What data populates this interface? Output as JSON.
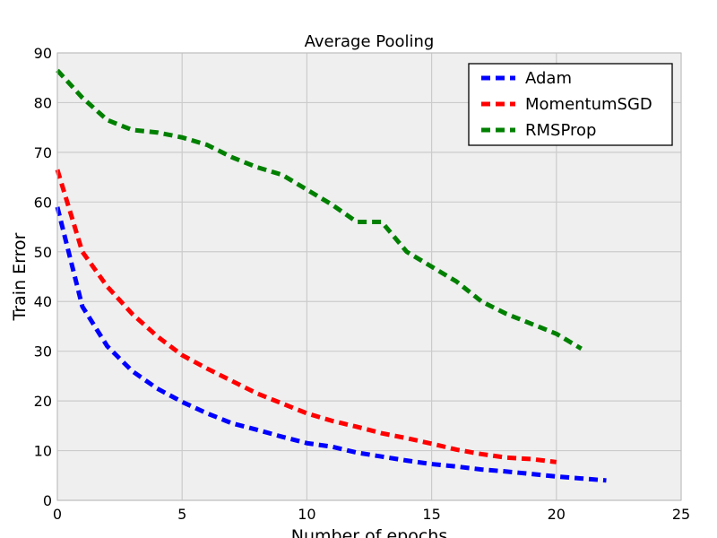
{
  "chart_data": {
    "type": "line",
    "title": "Average Pooling",
    "xlabel": "Number of epochs",
    "ylabel": "Train Error",
    "xlim": [
      0,
      25
    ],
    "ylim": [
      0,
      90
    ],
    "x_ticks": [
      0,
      5,
      10,
      15,
      20,
      25
    ],
    "y_ticks": [
      0,
      10,
      20,
      30,
      40,
      50,
      60,
      70,
      80,
      90
    ],
    "grid": true,
    "legend_position": "top-right",
    "series": [
      {
        "name": "Adam",
        "color": "#0000ff",
        "line_style": "dashed",
        "x": [
          0,
          1,
          2,
          3,
          4,
          5,
          6,
          7,
          8,
          9,
          10,
          11,
          12,
          13,
          14,
          15,
          16,
          17,
          18,
          19,
          20,
          21,
          22
        ],
        "values": [
          59,
          39,
          31,
          26,
          22.5,
          19.8,
          17.5,
          15.5,
          14.2,
          12.8,
          11.5,
          10.8,
          9.6,
          8.8,
          8,
          7.3,
          6.8,
          6.2,
          5.8,
          5.3,
          4.8,
          4.4,
          4.0
        ]
      },
      {
        "name": "MomentumSGD",
        "color": "#ff0000",
        "line_style": "dashed",
        "x": [
          0,
          1,
          2,
          3,
          4,
          5,
          6,
          7,
          8,
          9,
          10,
          11,
          12,
          13,
          14,
          15,
          16,
          17,
          18,
          19,
          20
        ],
        "values": [
          66.5,
          50,
          43,
          37.5,
          33,
          29.2,
          26.5,
          24,
          21.5,
          19.5,
          17.5,
          16,
          14.8,
          13.5,
          12.5,
          11.4,
          10.2,
          9.3,
          8.6,
          8.3,
          7.7
        ]
      },
      {
        "name": "RMSProp",
        "color": "#008000",
        "line_style": "dashed",
        "x": [
          0,
          1,
          2,
          3,
          4,
          5,
          6,
          7,
          8,
          9,
          10,
          11,
          12,
          13,
          14,
          15,
          16,
          17,
          18,
          19,
          20,
          21
        ],
        "values": [
          86.5,
          81,
          76.5,
          74.5,
          74,
          73,
          71.5,
          69,
          67,
          65.5,
          62.5,
          59.5,
          56,
          56,
          50,
          47,
          44,
          40,
          37.5,
          35.5,
          33.5,
          30.5
        ]
      }
    ]
  }
}
